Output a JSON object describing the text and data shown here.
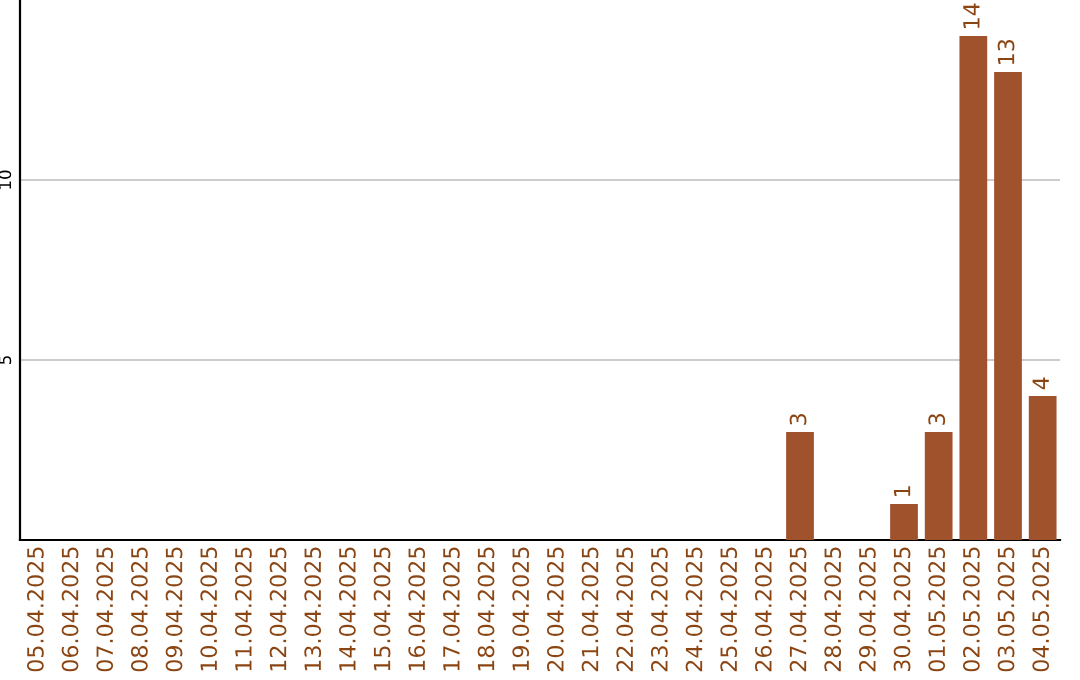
{
  "chart_data": {
    "type": "bar",
    "categories": [
      "05.04.2025",
      "06.04.2025",
      "07.04.2025",
      "08.04.2025",
      "09.04.2025",
      "10.04.2025",
      "11.04.2025",
      "12.04.2025",
      "13.04.2025",
      "14.04.2025",
      "15.04.2025",
      "16.04.2025",
      "17.04.2025",
      "18.04.2025",
      "19.04.2025",
      "20.04.2025",
      "21.04.2025",
      "22.04.2025",
      "23.04.2025",
      "24.04.2025",
      "25.04.2025",
      "26.04.2025",
      "27.04.2025",
      "28.04.2025",
      "29.04.2025",
      "30.04.2025",
      "01.05.2025",
      "02.05.2025",
      "03.05.2025",
      "04.05.2025"
    ],
    "values": [
      0,
      0,
      0,
      0,
      0,
      0,
      0,
      0,
      0,
      0,
      0,
      0,
      0,
      0,
      0,
      0,
      0,
      0,
      0,
      0,
      0,
      0,
      3,
      0,
      0,
      1,
      3,
      14,
      13,
      4
    ],
    "value_labels": [
      null,
      null,
      null,
      null,
      null,
      null,
      null,
      null,
      null,
      null,
      null,
      null,
      null,
      null,
      null,
      null,
      null,
      null,
      null,
      null,
      null,
      null,
      "3",
      null,
      null,
      "1",
      "3",
      "14",
      "13",
      "4"
    ],
    "color": "#a0522d",
    "ylim": [
      0,
      15
    ],
    "yticks": [
      5,
      10
    ],
    "grid": "y"
  }
}
